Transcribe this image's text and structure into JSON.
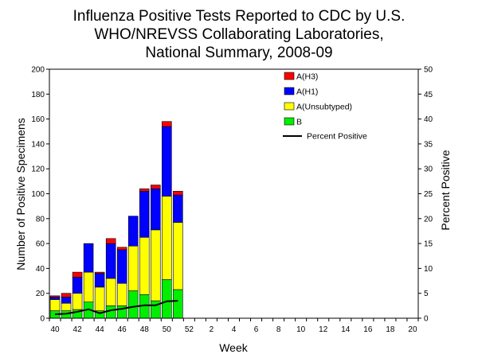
{
  "chart_data": {
    "type": "bar",
    "stacked": true,
    "title_lines": [
      "Influenza Positive Tests Reported to CDC by U.S.",
      "WHO/NREVSS Collaborating Laboratories,",
      "National Summary, 2008-09"
    ],
    "xlabel": "Week",
    "ylabel": "Number of Positive Specimens",
    "y2label": "Percent Positive",
    "ylim": [
      0,
      200
    ],
    "yticks": [
      0,
      20,
      40,
      60,
      80,
      100,
      120,
      140,
      160,
      180,
      200
    ],
    "y2lim": [
      0,
      50
    ],
    "y2ticks": [
      0,
      5,
      10,
      15,
      20,
      25,
      30,
      35,
      40,
      45,
      50
    ],
    "xtick_labels": [
      "40",
      "42",
      "44",
      "46",
      "48",
      "50",
      "52",
      "2",
      "4",
      "6",
      "8",
      "10",
      "12",
      "14",
      "16",
      "18",
      "20"
    ],
    "weeks": [
      40,
      41,
      42,
      43,
      44,
      45,
      46,
      47,
      48,
      49,
      50,
      51,
      52,
      1,
      2,
      3,
      4,
      5,
      6,
      7,
      8,
      9,
      10,
      11,
      12,
      13,
      14,
      15,
      16,
      17,
      18,
      19,
      20
    ],
    "grid": false,
    "legend_position": "top-right",
    "series": [
      {
        "name": "B",
        "color": "#00ee00",
        "values": [
          6,
          6,
          7,
          13,
          6,
          10,
          10,
          22,
          19,
          14,
          31,
          23
        ]
      },
      {
        "name": "A(Unsubtyped)",
        "color": "#ffff00",
        "values": [
          9,
          6,
          13,
          24,
          19,
          22,
          18,
          36,
          46,
          57,
          67,
          54
        ]
      },
      {
        "name": "A(H1)",
        "color": "#0000ff",
        "values": [
          2,
          5,
          13,
          23,
          11,
          28,
          27,
          24,
          37,
          33,
          56,
          22
        ]
      },
      {
        "name": "A(H3)",
        "color": "#ff0000",
        "values": [
          1,
          3,
          4,
          0,
          1,
          4,
          2,
          0,
          2,
          3,
          4,
          3
        ]
      }
    ],
    "line_series": {
      "name": "Percent Positive",
      "color": "#000000",
      "axis": "right",
      "values": [
        0.8,
        0.9,
        1.3,
        1.8,
        1.0,
        1.6,
        1.9,
        2.3,
        2.6,
        2.6,
        3.4,
        3.5
      ]
    }
  }
}
